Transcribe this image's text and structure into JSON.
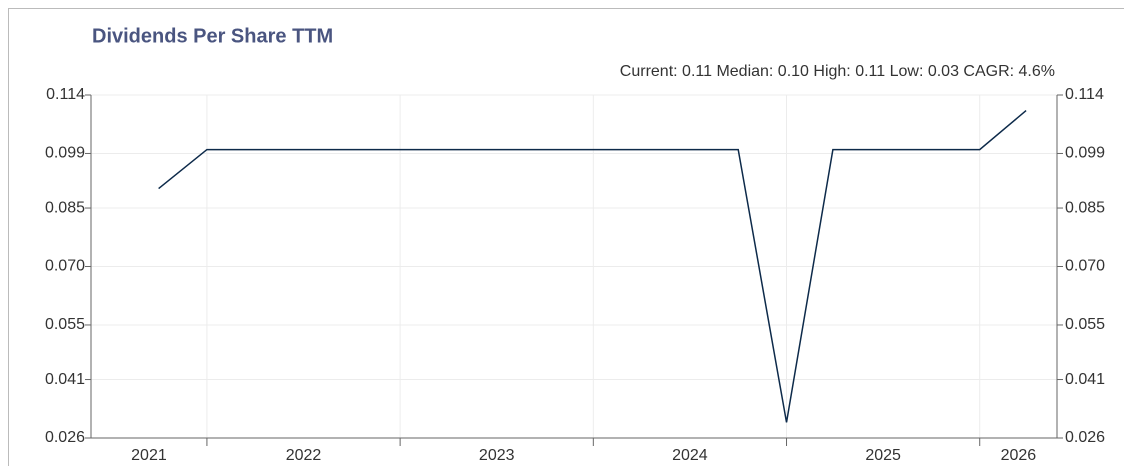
{
  "chart_data": {
    "type": "line",
    "title": "Dividends Per Share TTM",
    "subtitle": "Current: 0.11  Median: 0.10  High: 0.11  Low: 0.03  CAGR: 4.6%",
    "x": [
      2021.75,
      2022.0,
      2024.75,
      2025.0,
      2025.24,
      2026.0,
      2026.24
    ],
    "series": [
      {
        "name": "Dividends Per Share TTM",
        "color": "#0d2a4a",
        "values": [
          0.09,
          0.1,
          0.1,
          0.03,
          0.1,
          0.1,
          0.11
        ]
      }
    ],
    "xlim": [
      2021.4,
      2026.4
    ],
    "xticks": [
      2021,
      2022,
      2023,
      2024,
      2025,
      2026
    ],
    "ylim": [
      0.026,
      0.114
    ],
    "yticks": [
      0.026,
      0.041,
      0.055,
      {
        "value": 0.07,
        "label": "0.070"
      },
      0.085,
      0.099,
      0.114
    ],
    "grid": true
  }
}
